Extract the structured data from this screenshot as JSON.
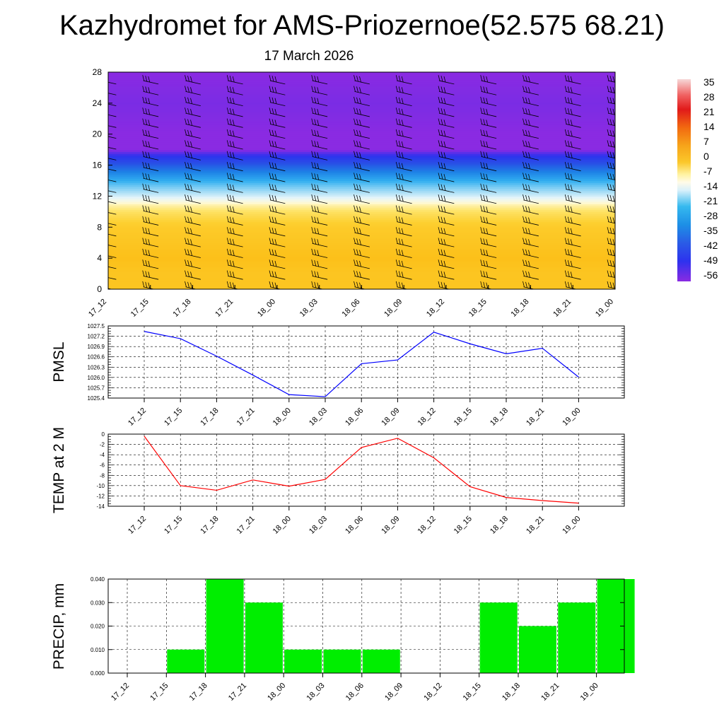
{
  "title": "Kazhydromet for AMS-Priozernoe(52.575 68.21)",
  "date": "17 March 2026",
  "colors": {
    "pmsl_line": "#0000ff",
    "temp_line": "#ff0000",
    "precip_bar": "#00ee00",
    "grid": "#000000"
  },
  "chart_data": [
    {
      "type": "heatmap",
      "description_type": "vertical time-height cross section (temperature shading with wind barbs)",
      "x_categories": [
        "17_12",
        "17_15",
        "17_18",
        "17_21",
        "18_00",
        "18_03",
        "18_06",
        "18_09",
        "18_12",
        "18_15",
        "18_18",
        "18_21",
        "19_00"
      ],
      "y_ticks": [
        0,
        4,
        8,
        12,
        16,
        20,
        24,
        28
      ],
      "ylim": [
        0,
        28
      ],
      "colorbar_labels": [
        "35",
        "28",
        "21",
        "14",
        "7",
        "0",
        "-7",
        "-14",
        "-21",
        "-28",
        "-35",
        "-42",
        "-49",
        "-56"
      ],
      "temperature_profile": {
        "heights": [
          0,
          2,
          4,
          6,
          8,
          10,
          11,
          12,
          13,
          14,
          15,
          16,
          17,
          18,
          20,
          24,
          28
        ],
        "values": [
          -3,
          -3,
          -2,
          -3,
          -4,
          -7,
          -10,
          -16,
          -21,
          -28,
          -35,
          -42,
          -50,
          -58,
          -58,
          -57,
          -58
        ]
      },
      "wind_barbs": "present"
    },
    {
      "type": "line",
      "ylabel": "PMSL",
      "x": [
        "17_12",
        "17_15",
        "17_18",
        "17_21",
        "18_00",
        "18_03",
        "18_06",
        "18_09",
        "18_12",
        "18_15",
        "18_18",
        "18_21",
        "19_00"
      ],
      "y_ticks": [
        "1025.4",
        "1025.7",
        "1026.0",
        "1026.3",
        "1026.6",
        "1026.9",
        "1027.2",
        "1027.5"
      ],
      "ylim": [
        1025.4,
        1027.5
      ],
      "series": [
        {
          "values": [
            1027.34,
            1027.13,
            1026.62,
            1026.07,
            1025.5,
            1025.44,
            1026.4,
            1026.51,
            1027.32,
            1026.98,
            1026.69,
            1026.85,
            1026.01
          ]
        }
      ],
      "grid": true
    },
    {
      "type": "line",
      "ylabel": "TEMP at 2 M",
      "x": [
        "17_12",
        "17_15",
        "17_18",
        "17_21",
        "18_00",
        "18_03",
        "18_06",
        "18_09",
        "18_12",
        "18_15",
        "18_18",
        "18_21",
        "19_00"
      ],
      "y_ticks": [
        "0",
        "-2",
        "-4",
        "-6",
        "-8",
        "-10",
        "-12",
        "-14"
      ],
      "ylim": [
        -14,
        0
      ],
      "series": [
        {
          "values": [
            -0.4,
            -10.0,
            -10.9,
            -8.9,
            -10.1,
            -8.8,
            -2.6,
            -0.8,
            -4.6,
            -10.2,
            -12.3,
            -12.9,
            -13.4
          ]
        }
      ],
      "grid": true
    },
    {
      "type": "bar",
      "ylabel": "PRECIP, mm",
      "categories": [
        "17_12",
        "17_15",
        "17_18",
        "17_21",
        "18_00",
        "18_03",
        "18_06",
        "18_09",
        "18_12",
        "18_15",
        "18_18",
        "18_21",
        "19_00"
      ],
      "values": [
        0,
        0.01,
        0.04,
        0.03,
        0.01,
        0.01,
        0.01,
        0,
        0,
        0.03,
        0.02,
        0.03,
        0.04
      ],
      "y_ticks": [
        "0.000",
        "0.010",
        "0.020",
        "0.030",
        "0.040"
      ],
      "ylim": [
        0,
        0.04
      ],
      "grid": true
    }
  ]
}
